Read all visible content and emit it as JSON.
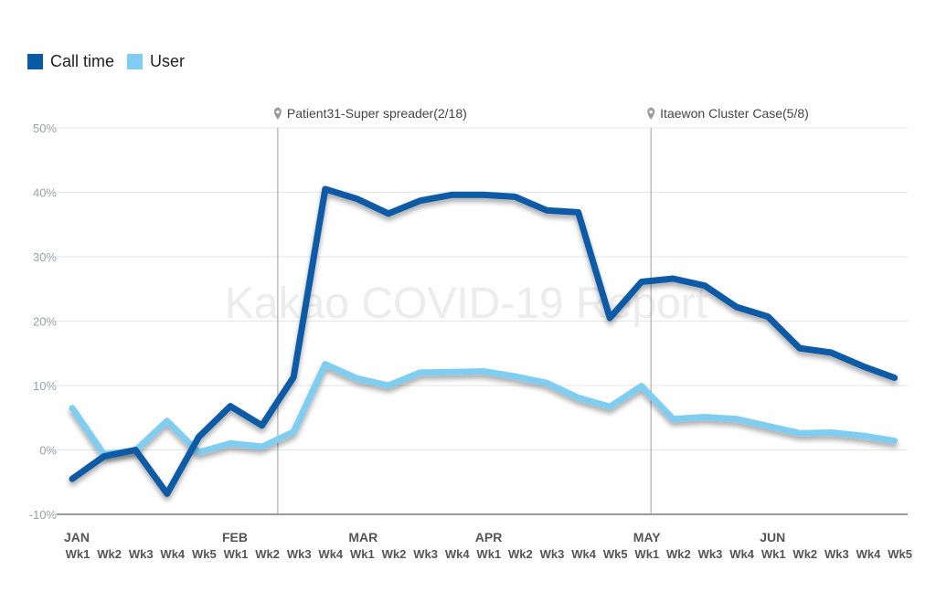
{
  "chart_data": {
    "type": "line",
    "title": "",
    "xlabel": "",
    "ylabel": "",
    "watermark": "Kakao COVID-19 Report",
    "ylim": [
      -10,
      50
    ],
    "y_ticks": [
      "-10%",
      "0%",
      "10%",
      "20%",
      "30%",
      "40%",
      "50%"
    ],
    "y_tick_values": [
      -10,
      0,
      10,
      20,
      30,
      40,
      50
    ],
    "grid": true,
    "legend_position": "top-left",
    "months": [
      {
        "label": "JAN",
        "start_index": 0
      },
      {
        "label": "FEB",
        "start_index": 5
      },
      {
        "label": "MAR",
        "start_index": 9
      },
      {
        "label": "APR",
        "start_index": 13
      },
      {
        "label": "MAY",
        "start_index": 18
      },
      {
        "label": "JUN",
        "start_index": 22
      }
    ],
    "categories": [
      "Wk1",
      "Wk2",
      "Wk3",
      "Wk4",
      "Wk5",
      "Wk1",
      "Wk2",
      "Wk3",
      "Wk4",
      "Wk1",
      "Wk2",
      "Wk3",
      "Wk4",
      "Wk1",
      "Wk2",
      "Wk3",
      "Wk4",
      "Wk5",
      "Wk1",
      "Wk2",
      "Wk3",
      "Wk4",
      "Wk1",
      "Wk2",
      "Wk3",
      "Wk4",
      "Wk5"
    ],
    "annotations": [
      {
        "label": "Patient31-Super spreader(2/18)",
        "x_index": 6.5
      },
      {
        "label": "Itaewon Cluster Case(5/8)",
        "x_index": 18.3
      }
    ],
    "series": [
      {
        "name": "Call time",
        "color": "#0b5aa6",
        "values": [
          -4.5,
          -1.0,
          0.0,
          -6.8,
          2.0,
          6.8,
          3.8,
          11.3,
          40.5,
          39.0,
          36.7,
          38.7,
          39.6,
          39.6,
          39.3,
          37.2,
          36.9,
          20.5,
          26.1,
          26.6,
          25.5,
          22.2,
          20.7,
          15.8,
          15.1,
          13.0,
          11.2
        ]
      },
      {
        "name": "User",
        "color": "#7fcdf0",
        "values": [
          6.5,
          -0.7,
          -0.1,
          4.5,
          -0.4,
          1.0,
          0.5,
          2.8,
          13.3,
          11.1,
          10.0,
          12.0,
          12.1,
          12.2,
          11.4,
          10.4,
          8.1,
          6.7,
          9.9,
          4.8,
          5.1,
          4.8,
          3.7,
          2.6,
          2.7,
          2.2,
          1.4
        ]
      }
    ]
  }
}
